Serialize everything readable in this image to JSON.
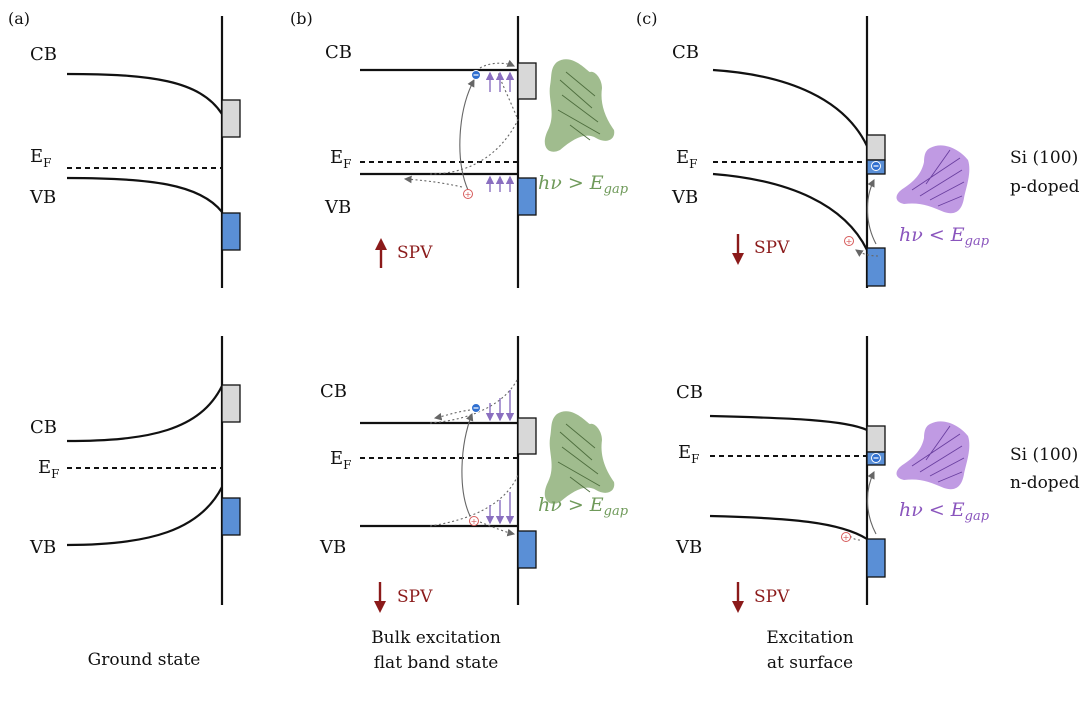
{
  "panels": {
    "a": "(a)",
    "b": "(b)",
    "c": "(c)"
  },
  "bands": {
    "cb": "CB",
    "vb": "VB",
    "ef_main": "E",
    "ef_sub": "F"
  },
  "photon": {
    "greater": "hν > E",
    "less": "hν < E",
    "sub": "gap"
  },
  "spv": "SPV",
  "rows": {
    "p": {
      "line1": "Si (100)",
      "line2": "p-doped"
    },
    "n": {
      "line1": "Si (100)",
      "line2": "n-doped"
    }
  },
  "captions": {
    "a": "Ground state",
    "b1": "Bulk excitation",
    "b2": "flat band state",
    "c1": "Excitation",
    "c2": "at surface"
  },
  "colors": {
    "spv_arrow": "#8b1a1a",
    "photon_green": "#6f9a5a",
    "photon_purple": "#8a55bd",
    "surface_state_filled": "#5a8fd6",
    "surface_state_empty": "#d8d8d8"
  }
}
